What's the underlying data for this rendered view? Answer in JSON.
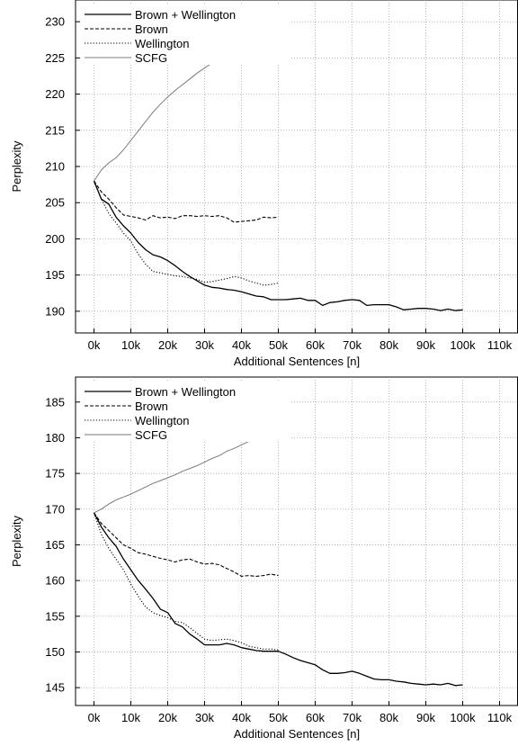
{
  "chart_data": [
    {
      "type": "line",
      "title": "",
      "xlabel": "Additional Sentences [n]",
      "ylabel": "Perplexity",
      "xlim": [
        -5,
        115
      ],
      "ylim": [
        187,
        233
      ],
      "xticks": [
        0,
        10,
        20,
        30,
        40,
        50,
        60,
        70,
        80,
        90,
        100,
        110
      ],
      "xtick_labels": [
        "0k",
        "10k",
        "20k",
        "30k",
        "40k",
        "50k",
        "60k",
        "70k",
        "80k",
        "90k",
        "100k",
        "110k"
      ],
      "yticks": [
        190,
        195,
        200,
        205,
        210,
        215,
        220,
        225,
        230
      ],
      "ytick_labels": [
        "190",
        "195",
        "200",
        "205",
        "210",
        "215",
        "220",
        "225",
        "230"
      ],
      "grid": true,
      "legend_position": "top-left",
      "series": [
        {
          "name": "Brown + Wellington",
          "style": "solid",
          "x": [
            0,
            2,
            4,
            6,
            8,
            10,
            12,
            14,
            16,
            18,
            20,
            22,
            24,
            26,
            28,
            30,
            32,
            34,
            36,
            38,
            40,
            42,
            44,
            46,
            48,
            50,
            52,
            54,
            56,
            58,
            60,
            62,
            64,
            66,
            68,
            70,
            72,
            74,
            76,
            78,
            80,
            82,
            84,
            86,
            88,
            90,
            92,
            94,
            96,
            98,
            100
          ],
          "y": [
            208,
            205.5,
            204.8,
            203,
            201.8,
            200.8,
            199.5,
            198.5,
            197.8,
            197.5,
            197,
            196.3,
            195.5,
            194.8,
            194.2,
            193.6,
            193.3,
            193.2,
            193,
            192.9,
            192.7,
            192.4,
            192.1,
            192,
            191.6,
            191.6,
            191.6,
            191.7,
            191.8,
            191.5,
            191.5,
            190.8,
            191.2,
            191.3,
            191.5,
            191.6,
            191.5,
            190.8,
            190.9,
            190.9,
            190.9,
            190.6,
            190.2,
            190.3,
            190.4,
            190.4,
            190.3,
            190.1,
            190.3,
            190.1,
            190.2
          ]
        },
        {
          "name": "Brown",
          "style": "dashed",
          "x": [
            0,
            2,
            4,
            6,
            8,
            10,
            12,
            14,
            16,
            18,
            20,
            22,
            24,
            26,
            28,
            30,
            32,
            34,
            36,
            38,
            40,
            42,
            44,
            46,
            48,
            50
          ],
          "y": [
            208,
            206.5,
            205.5,
            204.3,
            203.3,
            203.1,
            202.9,
            202.6,
            203.2,
            202.9,
            203,
            202.8,
            203.2,
            203.2,
            203.1,
            203.2,
            203.1,
            203.2,
            202.9,
            202.3,
            202.4,
            202.5,
            202.6,
            203,
            202.9,
            203
          ]
        },
        {
          "name": "Wellington",
          "style": "dotted",
          "x": [
            0,
            2,
            4,
            6,
            8,
            10,
            12,
            14,
            16,
            18,
            20,
            22,
            24,
            26,
            28,
            30,
            32,
            34,
            36,
            38,
            40,
            42,
            44,
            46,
            48,
            50
          ],
          "y": [
            208,
            205.5,
            203.5,
            202.2,
            200.8,
            199.7,
            197.9,
            196.5,
            195.5,
            195.3,
            195.1,
            194.9,
            194.8,
            194.6,
            194.4,
            194,
            194.1,
            194.3,
            194.5,
            194.8,
            194.6,
            194.2,
            193.9,
            193.6,
            193.7,
            193.9
          ]
        },
        {
          "name": "SCFG",
          "style": "gray",
          "x": [
            0,
            2,
            4,
            6,
            8,
            10,
            12,
            14,
            16,
            18,
            20,
            22,
            24,
            26,
            28,
            30,
            32,
            34,
            36,
            38,
            40,
            42,
            44,
            46,
            48,
            50
          ],
          "y": [
            208,
            209.5,
            210.5,
            211.2,
            212.3,
            213.6,
            214.9,
            216.2,
            217.5,
            218.6,
            219.6,
            220.5,
            221.3,
            222.1,
            222.9,
            223.6,
            224.3,
            225,
            225.8,
            226.5,
            227.2,
            227.9,
            228.6,
            229.4,
            230.2,
            231
          ]
        }
      ]
    },
    {
      "type": "line",
      "title": "",
      "xlabel": "Additional Sentences [n]",
      "ylabel": "Perplexity",
      "xlim": [
        -5,
        115
      ],
      "ylim": [
        142.5,
        188.5
      ],
      "xticks": [
        0,
        10,
        20,
        30,
        40,
        50,
        60,
        70,
        80,
        90,
        100,
        110
      ],
      "xtick_labels": [
        "0k",
        "10k",
        "20k",
        "30k",
        "40k",
        "50k",
        "60k",
        "70k",
        "80k",
        "90k",
        "100k",
        "110k"
      ],
      "yticks": [
        145,
        150,
        155,
        160,
        165,
        170,
        175,
        180,
        185
      ],
      "ytick_labels": [
        "145",
        "150",
        "155",
        "160",
        "165",
        "170",
        "175",
        "180",
        "185"
      ],
      "grid": true,
      "legend_position": "top-left",
      "series": [
        {
          "name": "Brown + Wellington",
          "style": "solid",
          "x": [
            0,
            2,
            4,
            6,
            8,
            10,
            12,
            14,
            16,
            18,
            20,
            22,
            24,
            26,
            28,
            30,
            32,
            34,
            36,
            38,
            40,
            42,
            44,
            46,
            48,
            50,
            52,
            54,
            56,
            58,
            60,
            62,
            64,
            66,
            68,
            70,
            72,
            74,
            76,
            78,
            80,
            82,
            84,
            86,
            88,
            90,
            92,
            94,
            96,
            98,
            100
          ],
          "y": [
            169.5,
            167.5,
            166,
            164.8,
            163,
            161.5,
            160,
            158.8,
            157.5,
            156,
            155.5,
            154,
            153.5,
            152.5,
            151.8,
            151,
            151,
            151,
            151.2,
            151,
            150.6,
            150.4,
            150.2,
            150.1,
            150.1,
            150.1,
            149.7,
            149.2,
            148.8,
            148.5,
            148.2,
            147.5,
            147,
            147,
            147.1,
            147.3,
            147,
            146.6,
            146.2,
            146.1,
            146.1,
            145.9,
            145.8,
            145.6,
            145.5,
            145.4,
            145.5,
            145.4,
            145.6,
            145.3,
            145.4
          ]
        },
        {
          "name": "Brown",
          "style": "dashed",
          "x": [
            0,
            2,
            4,
            6,
            8,
            10,
            12,
            14,
            16,
            18,
            20,
            22,
            24,
            26,
            28,
            30,
            32,
            34,
            36,
            38,
            40,
            42,
            44,
            46,
            48,
            50
          ],
          "y": [
            169.5,
            168,
            167,
            166,
            165,
            164.5,
            163.9,
            163.7,
            163.4,
            163.1,
            162.9,
            162.6,
            162.9,
            163,
            162.6,
            162.3,
            162.4,
            162.2,
            161.7,
            161.2,
            160.6,
            160.7,
            160.6,
            160.7,
            160.9,
            160.7
          ]
        },
        {
          "name": "Wellington",
          "style": "dotted",
          "x": [
            0,
            2,
            4,
            6,
            8,
            10,
            12,
            14,
            16,
            18,
            20,
            22,
            24,
            26,
            28,
            30,
            32,
            34,
            36,
            38,
            40,
            42,
            44,
            46,
            48,
            50
          ],
          "y": [
            169.5,
            166.5,
            164.5,
            163,
            161.5,
            159.5,
            157.8,
            156.3,
            155.5,
            155.1,
            154.8,
            154.3,
            154.1,
            153.4,
            152.6,
            151.8,
            151.6,
            151.7,
            151.8,
            151.6,
            151.3,
            150.8,
            150.6,
            150.4,
            150.4,
            150.3
          ]
        },
        {
          "name": "SCFG",
          "style": "gray",
          "x": [
            0,
            2,
            4,
            6,
            8,
            10,
            12,
            14,
            16,
            18,
            20,
            22,
            24,
            26,
            28,
            30,
            32,
            34,
            36,
            38,
            40,
            42,
            44,
            46,
            48,
            50
          ],
          "y": [
            169.5,
            170,
            170.7,
            171.3,
            171.7,
            172.1,
            172.6,
            173.1,
            173.6,
            174,
            174.4,
            174.8,
            175.3,
            175.7,
            176.1,
            176.6,
            177.1,
            177.5,
            178.1,
            178.5,
            179,
            179.5,
            180.2,
            180.8,
            181.5,
            182.2
          ]
        }
      ]
    }
  ],
  "style": {
    "grid_color": "#9a9a9a",
    "axis_color": "#000000",
    "series_colors": {
      "solid": "#000000",
      "dashed": "#000000",
      "dotted": "#000000",
      "gray": "#7a7a7a"
    }
  }
}
